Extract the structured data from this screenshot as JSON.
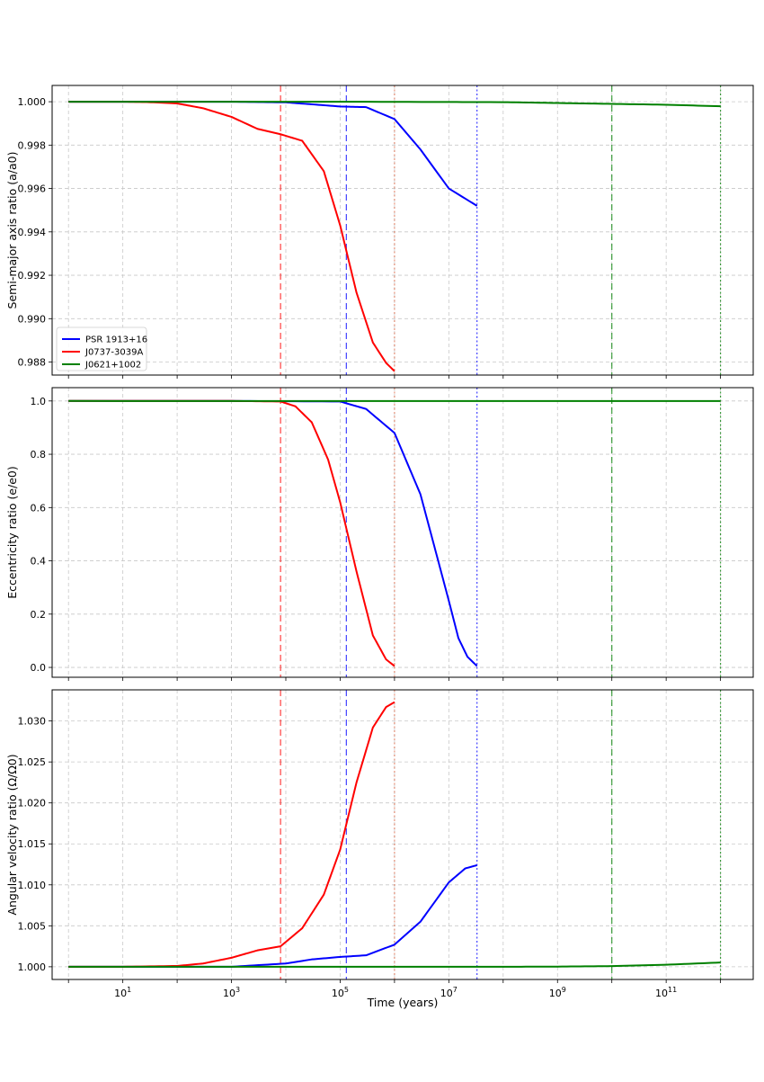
{
  "chart_data": [
    {
      "type": "line",
      "ylabel": "Semi-major axis ratio (a/a0)",
      "x_scale": "log",
      "xlim": [
        0.5,
        4000000000000.0
      ],
      "ylim": [
        0.9874,
        1.00075
      ],
      "yticks": [
        "0.988",
        "0.990",
        "0.992",
        "0.994",
        "0.996",
        "0.998",
        "1.000"
      ],
      "grid": true,
      "legend": {
        "placement": "lower left"
      },
      "series": [
        {
          "name": "PSR 1913+16",
          "color": "#0000ff",
          "x": [
            1,
            10,
            100,
            1000,
            10000,
            30000,
            100000,
            300000,
            1000000,
            3000000,
            10000000,
            33000000
          ],
          "y": [
            1.0,
            1.0,
            1.0,
            1.0,
            0.99997,
            0.99988,
            0.99978,
            0.99975,
            0.9992,
            0.9978,
            0.996,
            0.9952
          ]
        },
        {
          "name": "J0737-3039A",
          "color": "#ff0000",
          "x": [
            1,
            10,
            30,
            100,
            300,
            1000,
            3000,
            8000,
            20000,
            50000,
            100000,
            200000,
            400000,
            700000,
            1000000
          ],
          "y": [
            1.0,
            1.0,
            0.99998,
            0.99992,
            0.9997,
            0.9993,
            0.99875,
            0.9985,
            0.9982,
            0.9968,
            0.9943,
            0.9912,
            0.9889,
            0.98796,
            0.98758
          ]
        },
        {
          "name": "J0621+1002",
          "color": "#008000",
          "x": [
            1,
            100000.0,
            100000000.0,
            1000000000.0,
            10000000000.0,
            100000000000.0,
            1000000000000.0
          ],
          "y": [
            1.0,
            1.0,
            0.99998,
            0.99994,
            0.9999,
            0.99986,
            0.99979
          ]
        }
      ]
    },
    {
      "type": "line",
      "ylabel": "Eccentricity ratio (e/e0)",
      "x_scale": "log",
      "xlim": [
        0.5,
        4000000000000.0
      ],
      "ylim": [
        -0.037,
        1.05
      ],
      "yticks": [
        "0.0",
        "0.2",
        "0.4",
        "0.6",
        "0.8",
        "1.0"
      ],
      "grid": true,
      "series": [
        {
          "name": "PSR 1913+16",
          "color": "#0000ff",
          "x": [
            1,
            1000,
            100000,
            300000,
            1000000,
            3000000,
            6000000,
            10000000,
            15000000,
            22000000,
            33000000
          ],
          "y": [
            1.0,
            1.0,
            0.998,
            0.97,
            0.88,
            0.65,
            0.42,
            0.25,
            0.11,
            0.04,
            0.005
          ]
        },
        {
          "name": "J0737-3039A",
          "color": "#ff0000",
          "x": [
            1,
            1000,
            8000,
            15000,
            30000,
            60000,
            100000,
            200000,
            400000,
            700000,
            1000000
          ],
          "y": [
            1.0,
            1.0,
            0.998,
            0.98,
            0.92,
            0.78,
            0.62,
            0.36,
            0.12,
            0.03,
            0.005
          ]
        },
        {
          "name": "J0621+1002",
          "color": "#008000",
          "x": [
            1,
            1000000000000.0
          ],
          "y": [
            1.0,
            0.9998
          ]
        }
      ]
    },
    {
      "type": "line",
      "ylabel": "Angular velocity ratio (Ω/Ω0)",
      "xlabel": "Time (years)",
      "x_scale": "log",
      "xlim": [
        0.5,
        4000000000000.0
      ],
      "ylim": [
        0.99845,
        1.0338
      ],
      "yticks": [
        "1.000",
        "1.005",
        "1.010",
        "1.015",
        "1.020",
        "1.025",
        "1.030"
      ],
      "xtick_exponents": [
        "1",
        "3",
        "5",
        "7",
        "9",
        "11"
      ],
      "grid": true,
      "series": [
        {
          "name": "PSR 1913+16",
          "color": "#0000ff",
          "x": [
            1,
            1000,
            10000,
            30000,
            100000,
            300000,
            1000000,
            3000000,
            10000000,
            20000000,
            33000000
          ],
          "y": [
            1.0,
            1.0,
            1.0004,
            1.0009,
            1.0012,
            1.0014,
            1.0027,
            1.0055,
            1.0103,
            1.012,
            1.0124
          ]
        },
        {
          "name": "J0737-3039A",
          "color": "#ff0000",
          "x": [
            1,
            10,
            100,
            300,
            1000,
            3000,
            8000,
            20000,
            50000,
            100000,
            200000,
            400000,
            700000,
            1000000
          ],
          "y": [
            1.0,
            1.0,
            1.0001,
            1.0004,
            1.0011,
            1.002,
            1.0025,
            1.0047,
            1.0088,
            1.0143,
            1.0225,
            1.0292,
            1.0317,
            1.0323
          ]
        },
        {
          "name": "J0621+1002",
          "color": "#008000",
          "x": [
            1,
            100000000.0,
            1000000000.0,
            10000000000.0,
            100000000000.0,
            1000000000000.0
          ],
          "y": [
            1.0,
            1.0,
            1.00002,
            1.00008,
            1.00025,
            1.00052
          ]
        }
      ]
    }
  ],
  "vlines": [
    {
      "x": 8000,
      "style": "dashed",
      "color": "#ff0000"
    },
    {
      "x": 1000000,
      "style": "dotted",
      "color": "#e07050"
    },
    {
      "x": 130000,
      "style": "dashed",
      "color": "#0000ff"
    },
    {
      "x": 33000000,
      "style": "dotted",
      "color": "#0000ff"
    },
    {
      "x": 10000000000,
      "style": "dashed",
      "color": "#008000"
    },
    {
      "x": 1000000000000,
      "style": "dotted",
      "color": "#008000"
    }
  ],
  "legend": [
    {
      "label": "PSR 1913+16",
      "color": "#0000ff"
    },
    {
      "label": "J0737-3039A",
      "color": "#ff0000"
    },
    {
      "label": "J0621+1002",
      "color": "#008000"
    }
  ]
}
